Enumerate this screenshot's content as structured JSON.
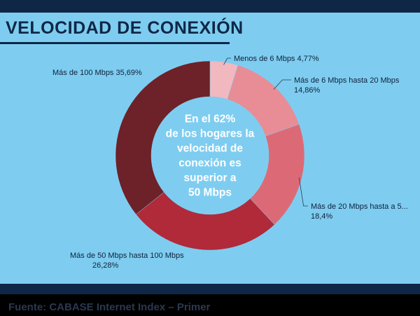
{
  "title": "VELOCIDAD DE CONEXIÓN",
  "source": "Fuente: CABASE Internet Index – Primer",
  "center_lines": [
    "En el 62%",
    "de los hogares la",
    "velocidad de",
    "conexión es",
    "superior a",
    "50 Mbps"
  ],
  "chart_data": {
    "type": "pie",
    "donut": true,
    "categories": [
      "Menos de 6 Mbps",
      "Más de 6 Mbps hasta 20 Mbps",
      "Más de 20 Mbps hasta a 5...",
      "Más de 50 Mbps hasta 100 Mbps",
      "Más de 100 Mbps"
    ],
    "values": [
      4.77,
      14.86,
      18.4,
      26.28,
      35.69
    ],
    "value_labels": [
      "4,77%",
      "14,86%",
      "18,4%",
      "26,28%",
      "35,69%"
    ],
    "colors": [
      "#f2b8bf",
      "#e88c96",
      "#dc6a76",
      "#b02a3a",
      "#6d2128"
    ]
  }
}
